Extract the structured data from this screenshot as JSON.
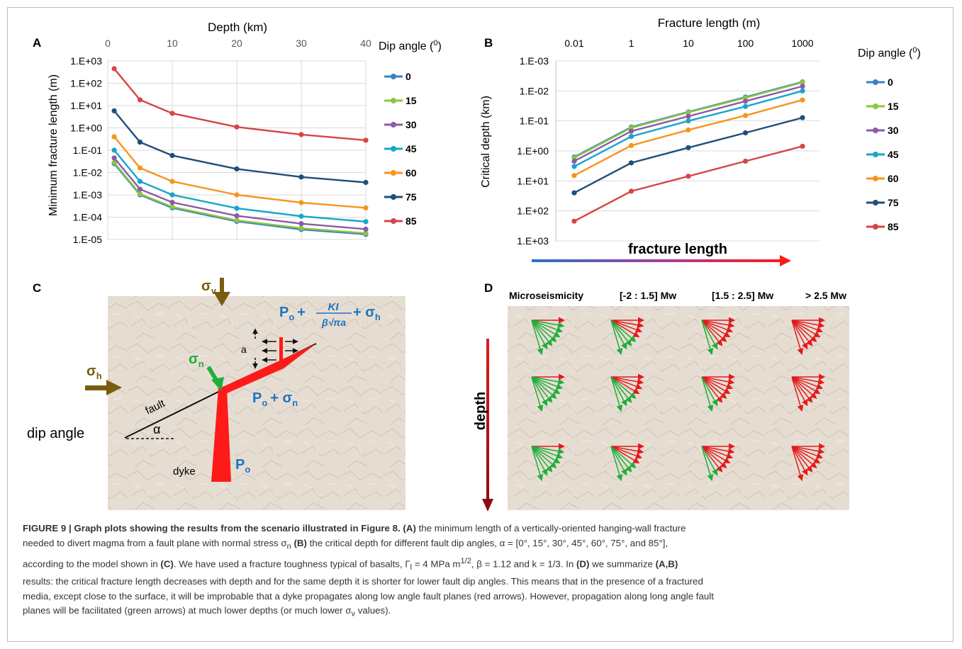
{
  "panelA": {
    "letter": "A",
    "xlabel": "Depth (km)",
    "ylabel": "Minimum fracture length (m)",
    "legend_title_prefix": "Dip angle (",
    "legend_title_sup": "0",
    "legend_title_suffix": ")"
  },
  "panelB": {
    "letter": "B",
    "xlabel": "Fracture length (m)",
    "ylabel": "Critical depth (km)",
    "legend_title_prefix": "Dip angle (",
    "legend_title_sup": "0",
    "legend_title_suffix": ")"
  },
  "panelC": {
    "letter": "C",
    "sigma_v": "σ",
    "sigma_v_sub": "v",
    "sigma_h": "σ",
    "sigma_h_sub": "h",
    "sigma_n": "σ",
    "sigma_n_sub": "n",
    "a_label": "a",
    "fault_label": "fault",
    "dip_label": "dip angle",
    "alpha_label": "α",
    "dyke_label": "dyke",
    "po_p": "P",
    "po_sub": "o",
    "eq1_plus": "+",
    "eq1_num": "KI",
    "eq1_den": "β√πa",
    "eq2_plus": "+ σ"
  },
  "panelD": {
    "letter": "D",
    "fracture_length_label": "fracture length",
    "depth_label": "depth",
    "columns": [
      "Microseismicity",
      "[-2 : 1.5] Mw",
      "[1.5 : 2.5]  Mw",
      "> 2.5 Mw"
    ]
  },
  "colors": {
    "series": [
      "#3a7fc6",
      "#8cc63f",
      "#8a5aa8",
      "#17a6c9",
      "#f7941d",
      "#1f4e79",
      "#d64545"
    ],
    "rock": "#e6ddd2",
    "arrow_red": "#e31a1c",
    "arrow_green": "#1fae3a",
    "sigma_brown": "#7a5c10",
    "label_blue": "#1f73c2"
  },
  "chart_data": [
    {
      "type": "line",
      "panel": "A",
      "xlabel": "Depth (km)",
      "ylabel": "Minimum fracture length (m)",
      "x_ticks": [
        0,
        10,
        20,
        30,
        40
      ],
      "xlim": [
        0,
        40
      ],
      "y_scale": "log",
      "ylim": [
        1e-05,
        1000.0
      ],
      "y_tick_labels": [
        "1.E+03",
        "1.E+02",
        "1.E+01",
        "1.E+00",
        "1.E-01",
        "1.E-02",
        "1.E-03",
        "1.E-04",
        "1.E-05"
      ],
      "legend_title": "Dip angle (0)",
      "grid": true,
      "legend": "right",
      "x": [
        1,
        5,
        10,
        20,
        30,
        40
      ],
      "series": [
        {
          "name": "0",
          "values": [
            0.025,
            0.001,
            0.00026,
            6.5e-05,
            2.8e-05,
            1.7e-05
          ]
        },
        {
          "name": "15",
          "values": [
            0.028,
            0.0011,
            0.00029,
            7.2e-05,
            3.2e-05,
            1.9e-05
          ]
        },
        {
          "name": "30",
          "values": [
            0.045,
            0.0018,
            0.00046,
            0.000115,
            5.1e-05,
            2.9e-05
          ]
        },
        {
          "name": "45",
          "values": [
            0.1,
            0.004,
            0.001,
            0.00025,
            0.00011,
            6.3e-05
          ]
        },
        {
          "name": "60",
          "values": [
            0.4,
            0.016,
            0.004,
            0.001,
            0.00045,
            0.00026
          ]
        },
        {
          "name": "75",
          "values": [
            5.8,
            0.23,
            0.058,
            0.0145,
            0.0063,
            0.0036
          ]
        },
        {
          "name": "85",
          "values": [
            450,
            18,
            4.5,
            1.1,
            0.5,
            0.28
          ]
        }
      ]
    },
    {
      "type": "line",
      "panel": "B",
      "xlabel": "Fracture length (m)",
      "ylabel": "Critical depth (km)",
      "categories": [
        "0.01",
        "1",
        "10",
        "100",
        "1000"
      ],
      "y_scale": "log",
      "y_reversed": true,
      "ylim": [
        0.001,
        1000.0
      ],
      "y_tick_labels": [
        "1.E-03",
        "1.E-02",
        "1.E-01",
        "1.E+00",
        "1.E+01",
        "1.E+02",
        "1.E+03"
      ],
      "legend_title": "Dip angle (0)",
      "grid": true,
      "legend": "right",
      "series": [
        {
          "name": "0",
          "values": [
            1.6,
            0.16,
            0.05,
            0.016,
            0.005
          ]
        },
        {
          "name": "15",
          "values": [
            1.7,
            0.17,
            0.052,
            0.017,
            0.0052
          ]
        },
        {
          "name": "30",
          "values": [
            2.2,
            0.22,
            0.07,
            0.022,
            0.007
          ]
        },
        {
          "name": "45",
          "values": [
            3.3,
            0.33,
            0.1,
            0.033,
            0.01
          ]
        },
        {
          "name": "60",
          "values": [
            6.6,
            0.66,
            0.2,
            0.066,
            0.02
          ]
        },
        {
          "name": "75",
          "values": [
            25,
            2.5,
            0.78,
            0.25,
            0.078
          ]
        },
        {
          "name": "85",
          "values": [
            220,
            22,
            7,
            2.2,
            0.7
          ]
        }
      ]
    }
  ],
  "caption": {
    "fig_title": "FIGURE 9 | Graph plots showing the results from the scenario illustrated in Figure 8. (A)",
    "t1": " the minimum length of a vertically-oriented hanging-wall fracture",
    "t2": "needed to divert magma from a fault plane with normal stress σ",
    "t2_sub": "n",
    "t2_b": " (B)",
    "t2_end": " the critical depth for different fault dip angles, α = [0°, 15°, 30°, 45°, 60°, 75°, and 85°],",
    "t3": "according to the model shown in ",
    "t3_b": "(C)",
    "t3_end": ". We have used a fracture toughness typical of basalts, Γ",
    "t3_sub": "l",
    "t3_end2": " = 4 MPa m",
    "t3_sup": "1/2",
    "t3_end3": ", β = 1.12 and k = 1/3. In ",
    "t3_b2": "(D)",
    "t3_end4": " we summarize ",
    "t3_b3": "(A,B)",
    "t4": "results: the critical fracture length decreases with depth and for the same depth it is shorter for lower fault dip angles. This means that in the presence of a fractured",
    "t5": "media, except close to the surface, it will be improbable that a dyke propagates along low angle fault planes (red arrows). However, propagation along long angle fault",
    "t6": "planes will be facilitated (green arrows) at much lower depths (or much lower σ",
    "t6_sub": "v",
    "t6_end": " values)."
  }
}
